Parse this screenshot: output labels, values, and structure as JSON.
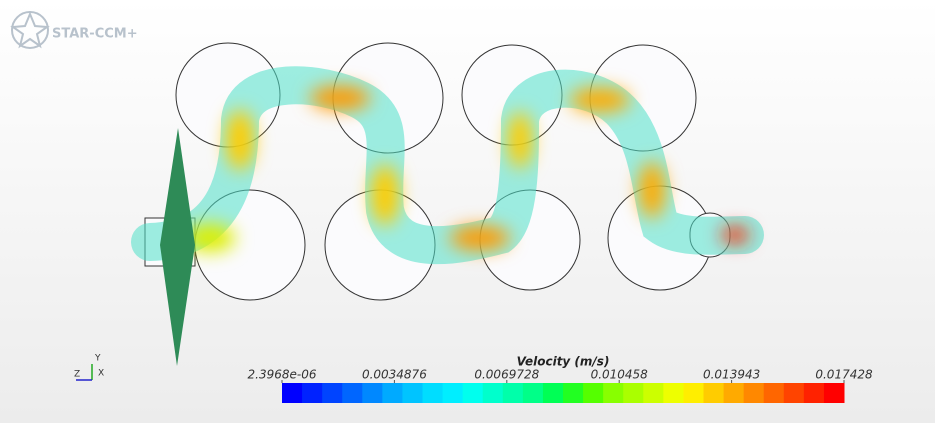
{
  "logo": "STAR-CCM+",
  "axes_triad": {
    "x": "X",
    "y": "Y",
    "z": "Z"
  },
  "colorbar": {
    "title": "Velocity (m/s)",
    "range": [
      2.3968e-06,
      0.017428
    ],
    "ticks": [
      {
        "value": 2.3968e-06,
        "label": "2.3968e-06"
      },
      0.0034876,
      0.0069728,
      0.010458,
      0.013943,
      0.017428
    ],
    "colors": [
      "#0000ff",
      "#0022ff",
      "#0044ff",
      "#0066ff",
      "#0088ff",
      "#00aaff",
      "#00c4ff",
      "#00ddff",
      "#00eeff",
      "#00ffee",
      "#00ffcc",
      "#00ffaa",
      "#00ff88",
      "#00ff55",
      "#22ff22",
      "#55ff00",
      "#88ff00",
      "#aaff00",
      "#ccff00",
      "#eeff00",
      "#ffee00",
      "#ffcc00",
      "#ffaa00",
      "#ff8800",
      "#ff6600",
      "#ff4400",
      "#ff2200",
      "#ff0000"
    ]
  }
}
